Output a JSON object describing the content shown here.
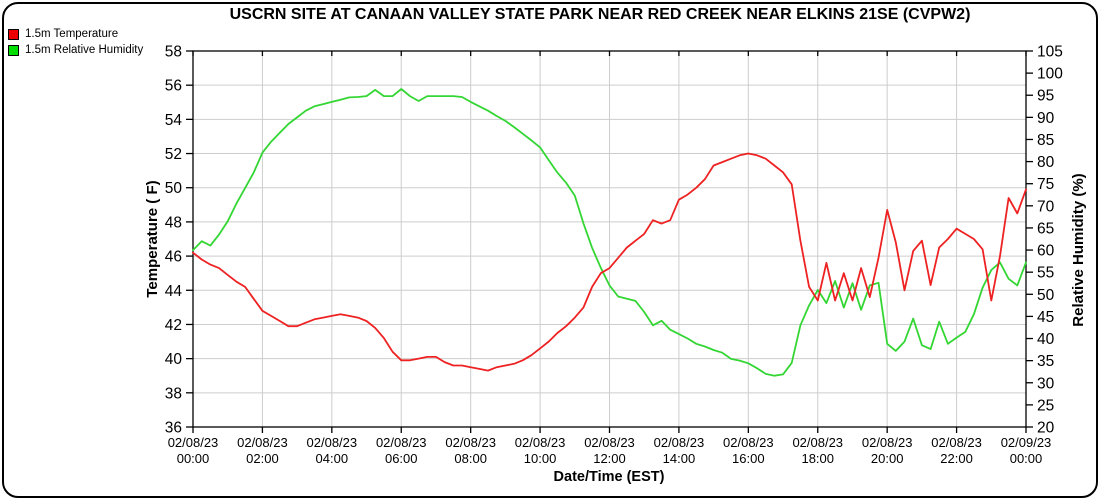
{
  "title": "USCRN SITE AT CANAAN VALLEY STATE PARK NEAR RED CREEK NEAR ELKINS 21SE (CVPW2)",
  "legend": {
    "position": "top-left",
    "items": [
      {
        "label": "1.5m Temperature",
        "color": "#ee0000"
      },
      {
        "label": "1.5m Relative Humidity",
        "color": "#00dd00"
      }
    ]
  },
  "chart_data": {
    "type": "line",
    "title": "USCRN SITE AT CANAAN VALLEY STATE PARK NEAR RED CREEK NEAR ELKINS 21SE (CVPW2)",
    "grid": true,
    "grid_color": "#cdcdcd",
    "legend_position": "top-left",
    "x_axis": {
      "label": "Date/Time (EST)",
      "hours_span": 24,
      "tick_interval_hours": 2,
      "ticks": [
        {
          "date": "02/08/23",
          "time": "00:00"
        },
        {
          "date": "02/08/23",
          "time": "02:00"
        },
        {
          "date": "02/08/23",
          "time": "04:00"
        },
        {
          "date": "02/08/23",
          "time": "06:00"
        },
        {
          "date": "02/08/23",
          "time": "08:00"
        },
        {
          "date": "02/08/23",
          "time": "10:00"
        },
        {
          "date": "02/08/23",
          "time": "12:00"
        },
        {
          "date": "02/08/23",
          "time": "14:00"
        },
        {
          "date": "02/08/23",
          "time": "16:00"
        },
        {
          "date": "02/08/23",
          "time": "18:00"
        },
        {
          "date": "02/08/23",
          "time": "20:00"
        },
        {
          "date": "02/08/23",
          "time": "22:00"
        },
        {
          "date": "02/09/23",
          "time": "00:00"
        }
      ]
    },
    "y_axis_left": {
      "label": "Temperature ( F)",
      "min": 36,
      "max": 58,
      "tick_step": 2,
      "ticks": [
        36,
        38,
        40,
        42,
        44,
        46,
        48,
        50,
        52,
        54,
        56,
        58
      ],
      "gridlines": true
    },
    "y_axis_right": {
      "label": "Relative Humidity (%)",
      "min": 20,
      "max": 105,
      "tick_step": 5,
      "ticks": [
        20,
        25,
        30,
        35,
        40,
        45,
        50,
        55,
        60,
        65,
        70,
        75,
        80,
        85,
        90,
        95,
        100,
        105
      ],
      "gridlines": false
    },
    "series": [
      {
        "name": "1.5m Temperature",
        "axis": "left",
        "units": "F",
        "color": "#ee2222",
        "start_hour": 0,
        "interval_hours": 0.25,
        "values": [
          46.2,
          45.8,
          45.5,
          45.3,
          44.9,
          44.5,
          44.2,
          43.5,
          42.8,
          42.5,
          42.2,
          41.9,
          41.9,
          42.1,
          42.3,
          42.4,
          42.5,
          42.6,
          42.5,
          42.4,
          42.2,
          41.8,
          41.2,
          40.4,
          39.9,
          39.9,
          40.0,
          40.1,
          40.1,
          39.8,
          39.6,
          39.6,
          39.5,
          39.4,
          39.3,
          39.5,
          39.6,
          39.7,
          39.9,
          40.2,
          40.6,
          41.0,
          41.5,
          41.9,
          42.4,
          43.0,
          44.2,
          45.0,
          45.3,
          45.9,
          46.5,
          46.9,
          47.3,
          48.1,
          47.9,
          48.1,
          49.3,
          49.6,
          50.0,
          50.5,
          51.3,
          51.5,
          51.7,
          51.9,
          52.0,
          51.9,
          51.7,
          51.3,
          50.9,
          50.2,
          46.9,
          44.2,
          43.4,
          45.6,
          43.4,
          45.0,
          43.4,
          45.3,
          43.6,
          45.9,
          48.7,
          46.8,
          44.0,
          46.3,
          46.9,
          44.3,
          46.5,
          47.0,
          47.6,
          47.3,
          47.0,
          46.4,
          43.4,
          46.0,
          49.4,
          48.5,
          49.9
        ]
      },
      {
        "name": "1.5m Relative Humidity",
        "axis": "right",
        "units": "%",
        "color": "#33d633",
        "start_hour": 0,
        "interval_hours": 0.25,
        "values": [
          60,
          62,
          61,
          63.5,
          66.5,
          70.5,
          74,
          77.5,
          82,
          84.5,
          86.5,
          88.5,
          90,
          91.5,
          92.5,
          93,
          93.5,
          94,
          94.5,
          94.6,
          94.8,
          96.2,
          94.8,
          94.8,
          96.4,
          94.8,
          93.7,
          94.8,
          94.8,
          94.8,
          94.8,
          94.6,
          93.5,
          92.5,
          91.5,
          90.3,
          89.2,
          87.8,
          86.3,
          84.8,
          83.2,
          80.3,
          77.5,
          75.2,
          72.3,
          66,
          60.5,
          56,
          52,
          49.5,
          49,
          48.5,
          46,
          43,
          44,
          42,
          41,
          40,
          38.8,
          38.2,
          37.4,
          36.8,
          35.4,
          35,
          34.4,
          33.3,
          32,
          31.6,
          31.9,
          34.5,
          43,
          47.5,
          51,
          48,
          53,
          47,
          52.5,
          46.5,
          52,
          52.6,
          38.8,
          37.2,
          39.3,
          44.5,
          38.5,
          37.6,
          43.8,
          38.8,
          40.2,
          41.5,
          45.5,
          51.5,
          55.5,
          57.2,
          53.5,
          52,
          57.2
        ]
      }
    ]
  }
}
